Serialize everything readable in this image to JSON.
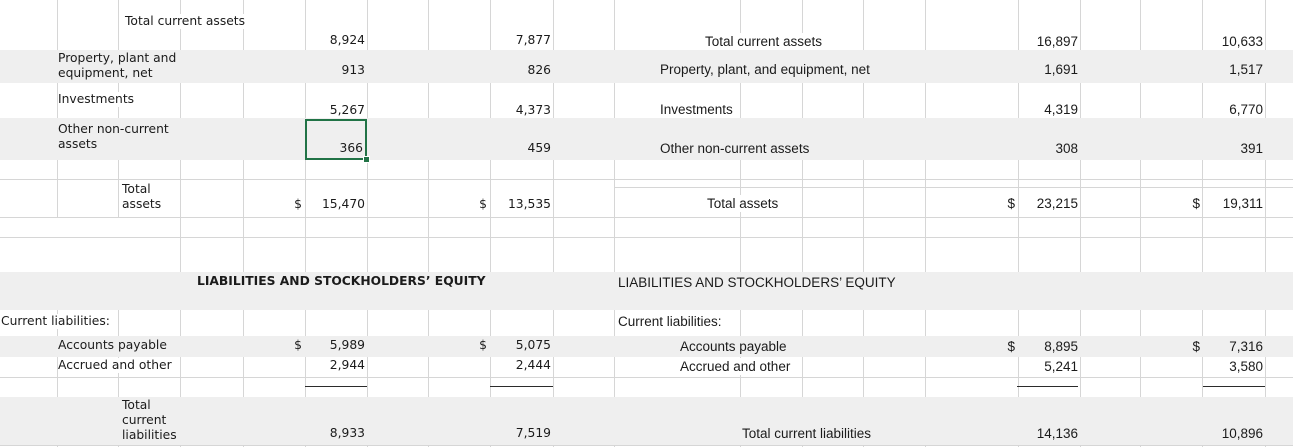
{
  "sheet": {
    "styles": {
      "band_color": "#efefef",
      "gridline_color": "#d6d6d6",
      "selection_color": "#217346",
      "subtotal_rule_color": "#2b2b2b",
      "text_color": "#1b1b1b"
    },
    "selection": {
      "value": "366",
      "fill_handle": "fill-handle"
    },
    "left_table": {
      "assets_rows": [
        {
          "label": "Total current assets",
          "v1": "8,924",
          "v2": "7,877"
        },
        {
          "label": "Property, plant and equipment, net",
          "v1": "913",
          "v2": "826"
        },
        {
          "label": "Investments",
          "v1": "5,267",
          "v2": "4,373"
        },
        {
          "label": "Other non-current assets",
          "v1": "366",
          "v2": "459"
        },
        {
          "label": "Total assets",
          "c1": "$",
          "v1": "15,470",
          "c2": "$",
          "v2": "13,535"
        }
      ],
      "section_header": "LIABILITIES AND STOCKHOLDERS’ EQUITY",
      "liabilities_rows": [
        {
          "label": "Current liabilities:"
        },
        {
          "label": "Accounts payable",
          "c1": "$",
          "v1": "5,989",
          "c2": "$",
          "v2": "5,075"
        },
        {
          "label": "Accrued and other",
          "v1": "2,944",
          "v2": "2,444"
        },
        {
          "label": "Total current liabilities",
          "v1": "8,933",
          "v2": "7,519"
        }
      ]
    },
    "right_table": {
      "assets_rows": [
        {
          "label": "Total current assets",
          "v1": "16,897",
          "v2": "10,633"
        },
        {
          "label": "Property, plant, and equipment, net",
          "v1": "1,691",
          "v2": "1,517"
        },
        {
          "label": "Investments",
          "v1": "4,319",
          "v2": "6,770"
        },
        {
          "label": "Other non-current assets",
          "v1": "308",
          "v2": "391"
        },
        {
          "label": "Total assets",
          "c1": "$",
          "v1": "23,215",
          "c2": "$",
          "v2": "19,311"
        }
      ],
      "section_header": "LIABILITIES AND STOCKHOLDERS’ EQUITY",
      "liabilities_rows": [
        {
          "label": "Current liabilities:"
        },
        {
          "label": "Accounts payable",
          "c1": "$",
          "v1": "8,895",
          "c2": "$",
          "v2": "7,316"
        },
        {
          "label": "Accrued and other",
          "v1": "5,241",
          "v2": "3,580"
        },
        {
          "label": "Total current liabilities",
          "v1": "14,136",
          "v2": "10,896"
        }
      ]
    }
  }
}
